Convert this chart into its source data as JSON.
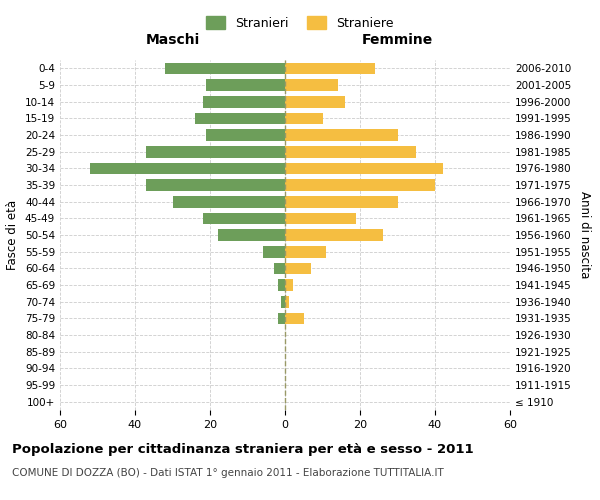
{
  "age_groups": [
    "100+",
    "95-99",
    "90-94",
    "85-89",
    "80-84",
    "75-79",
    "70-74",
    "65-69",
    "60-64",
    "55-59",
    "50-54",
    "45-49",
    "40-44",
    "35-39",
    "30-34",
    "25-29",
    "20-24",
    "15-19",
    "10-14",
    "5-9",
    "0-4"
  ],
  "birth_years": [
    "≤ 1910",
    "1911-1915",
    "1916-1920",
    "1921-1925",
    "1926-1930",
    "1931-1935",
    "1936-1940",
    "1941-1945",
    "1946-1950",
    "1951-1955",
    "1956-1960",
    "1961-1965",
    "1966-1970",
    "1971-1975",
    "1976-1980",
    "1981-1985",
    "1986-1990",
    "1991-1995",
    "1996-2000",
    "2001-2005",
    "2006-2010"
  ],
  "males": [
    0,
    0,
    0,
    0,
    0,
    2,
    1,
    2,
    3,
    6,
    18,
    22,
    30,
    37,
    52,
    37,
    21,
    24,
    22,
    21,
    32
  ],
  "females": [
    0,
    0,
    0,
    0,
    0,
    5,
    1,
    2,
    7,
    11,
    26,
    19,
    30,
    40,
    42,
    35,
    30,
    10,
    16,
    14,
    24
  ],
  "male_color": "#6d9e5a",
  "female_color": "#f5be41",
  "grid_color": "#cccccc",
  "center_line_color": "#999966",
  "title": "Popolazione per cittadinanza straniera per età e sesso - 2011",
  "subtitle": "COMUNE DI DOZZA (BO) - Dati ISTAT 1° gennaio 2011 - Elaborazione TUTTITALIA.IT",
  "xlabel_left": "Maschi",
  "xlabel_right": "Femmine",
  "ylabel_left": "Fasce di età",
  "ylabel_right": "Anni di nascita",
  "legend_males": "Stranieri",
  "legend_females": "Straniere",
  "xlim": 60,
  "background_color": "#ffffff"
}
